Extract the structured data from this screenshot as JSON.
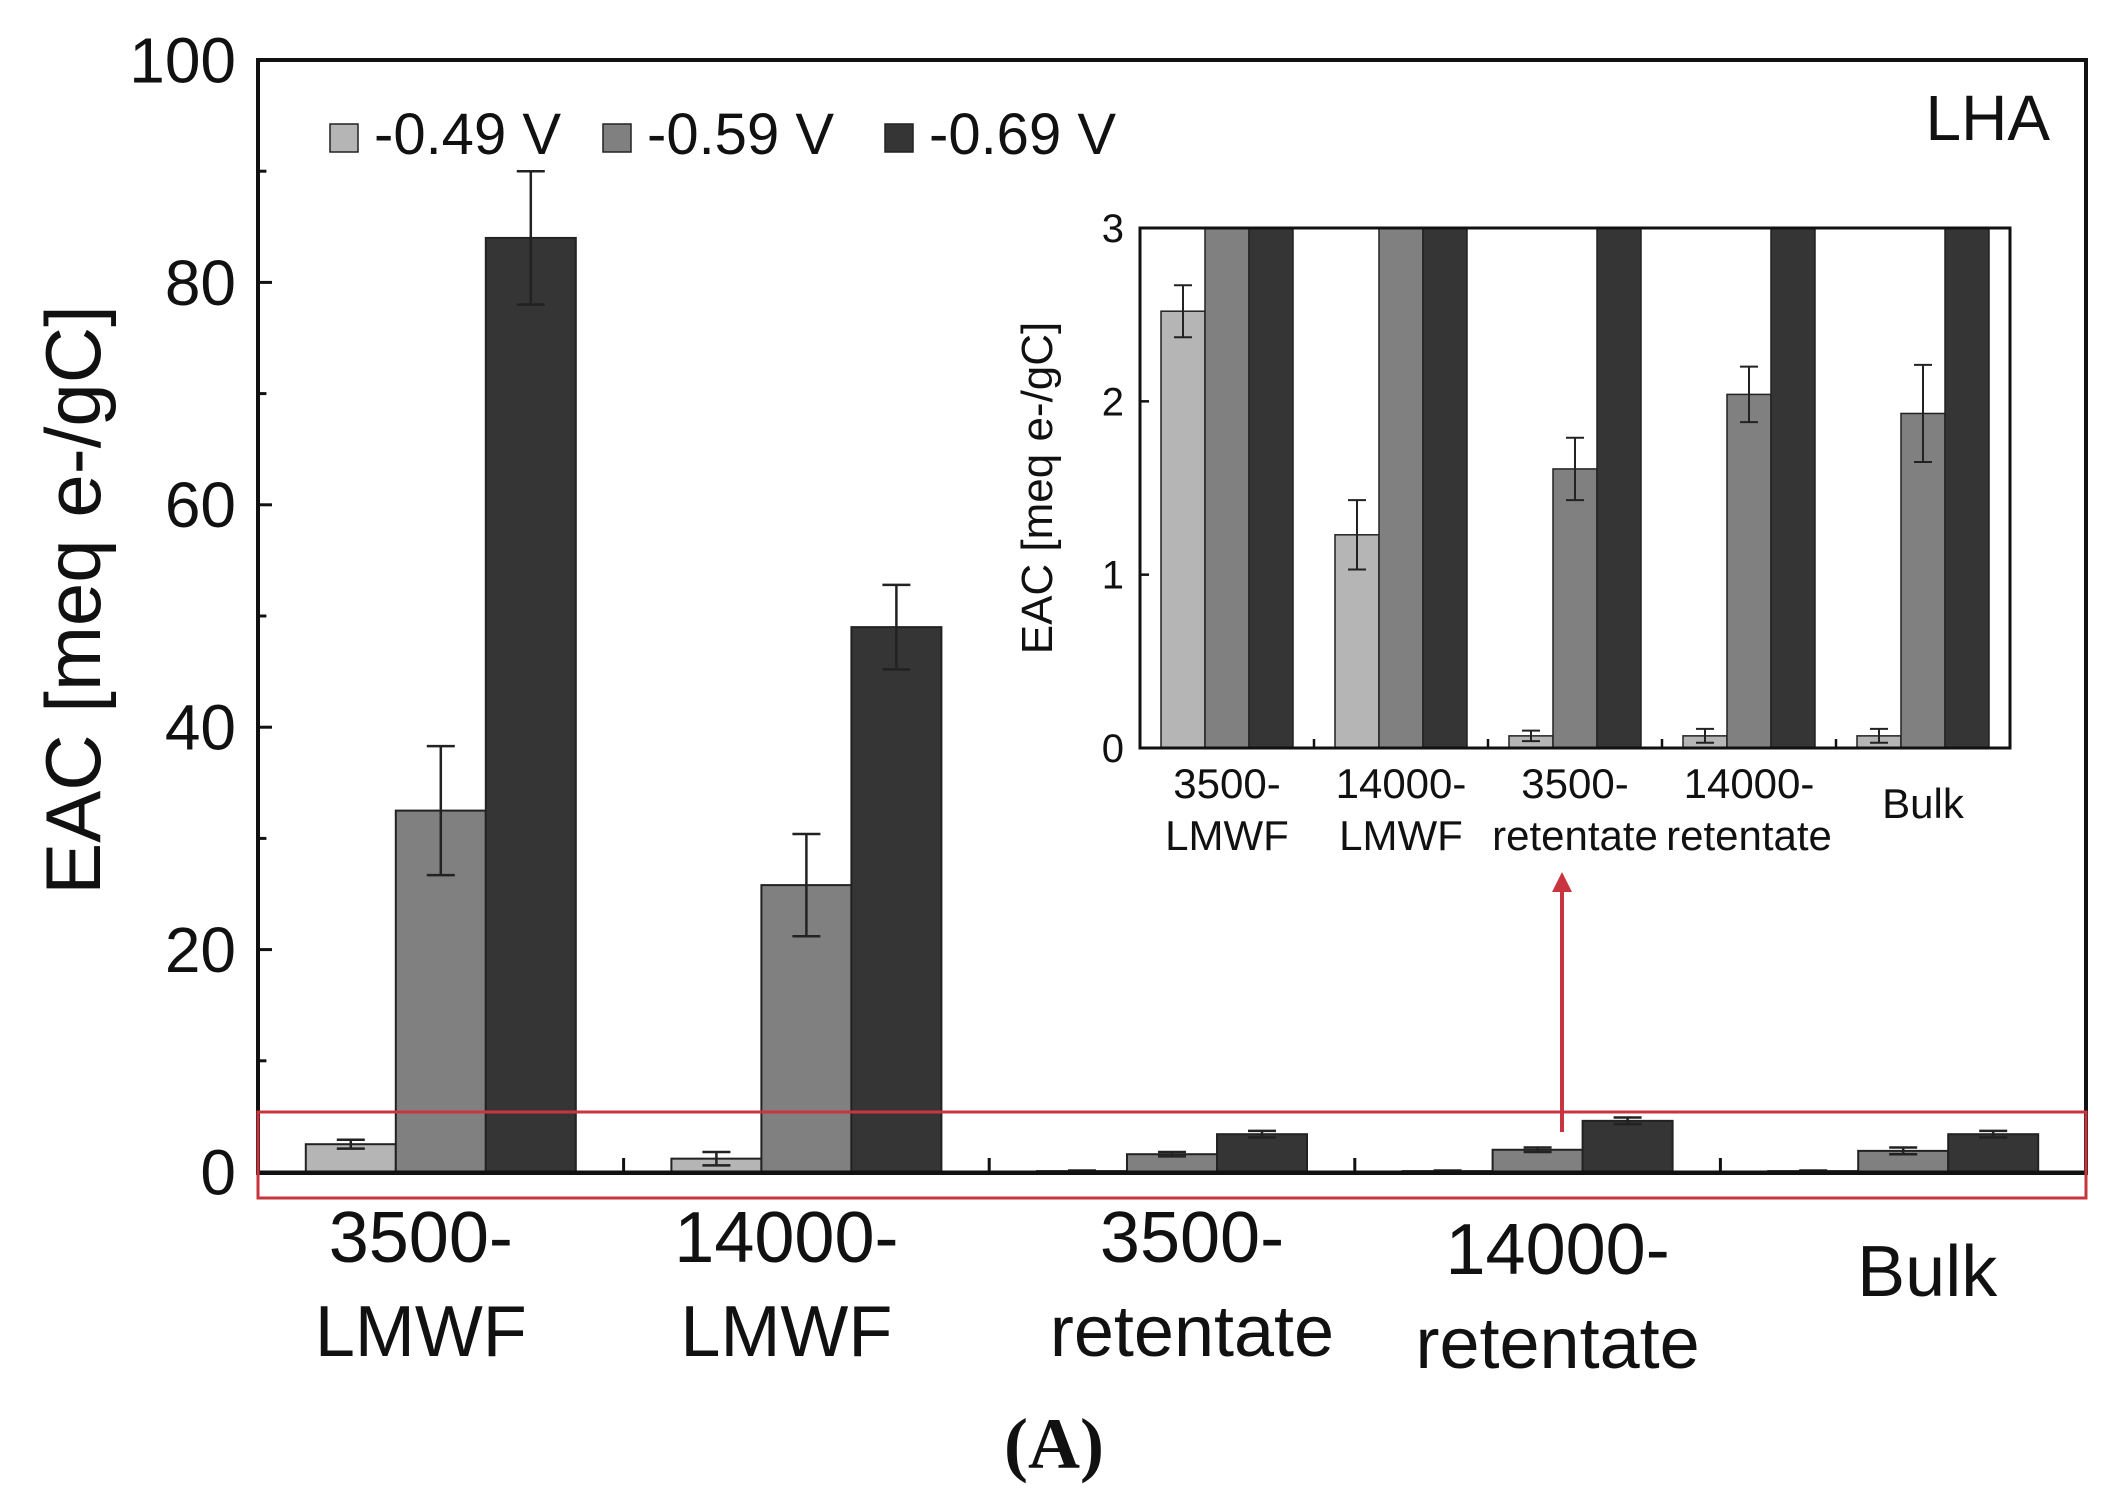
{
  "chart_data": [
    {
      "type": "bar",
      "title": "LHA",
      "ylabel": "EAC [meq e-/gC]",
      "xlabel": "",
      "ylim": [
        0,
        100
      ],
      "yticks": [
        "0",
        "20",
        "40",
        "60",
        "80",
        "100"
      ],
      "yticks_values": [
        0,
        20,
        40,
        60,
        80,
        100
      ],
      "categories": [
        "3500-\nLMWF",
        "14000-\nLMWF",
        "3500-\nretentate",
        "14000-\nretentate",
        "Bulk"
      ],
      "legend_position": "top-left",
      "series": [
        {
          "name": "-0.49 V",
          "values": [
            2.5,
            1.2,
            0.08,
            0.08,
            0.08
          ],
          "errors": [
            0.4,
            0.6,
            0.05,
            0.05,
            0.05
          ],
          "color": "#b5b5b5"
        },
        {
          "name": "-0.59 V",
          "values": [
            32.5,
            25.8,
            1.6,
            2.0,
            1.9
          ],
          "errors": [
            5.8,
            4.6,
            0.2,
            0.2,
            0.3
          ],
          "color": "#808080"
        },
        {
          "name": "-0.69 V",
          "values": [
            84.0,
            49.0,
            3.4,
            4.6,
            3.4
          ],
          "errors": [
            6.0,
            3.8,
            0.3,
            0.3,
            0.3
          ],
          "color": "#353535"
        }
      ]
    },
    {
      "type": "bar",
      "ylabel": "EAC [meq e-/gC]",
      "ylim": [
        0,
        3
      ],
      "yticks": [
        "0",
        "1",
        "2",
        "3"
      ],
      "yticks_values": [
        0,
        1,
        2,
        3
      ],
      "categories": [
        "3500-\nLMWF",
        "14000-\nLMWF",
        "3500-\nretentate",
        "14000-\nretentate",
        "Bulk"
      ],
      "series": [
        {
          "name": "-0.49 V",
          "values": [
            2.52,
            1.23,
            0.07,
            0.07,
            0.07
          ],
          "errors": [
            0.15,
            0.2,
            0.03,
            0.04,
            0.04
          ],
          "color": "#b5b5b5"
        },
        {
          "name": "-0.59 V",
          "values": [
            3.0,
            3.0,
            1.61,
            2.04,
            1.93
          ],
          "errors": [
            0,
            0,
            0.18,
            0.16,
            0.28
          ],
          "color": "#808080"
        },
        {
          "name": "-0.69 V",
          "values": [
            3.0,
            3.0,
            3.0,
            3.0,
            3.0
          ],
          "errors": [
            0,
            0,
            0,
            0,
            0
          ],
          "color": "#353535"
        }
      ]
    }
  ],
  "caption": "(A)"
}
